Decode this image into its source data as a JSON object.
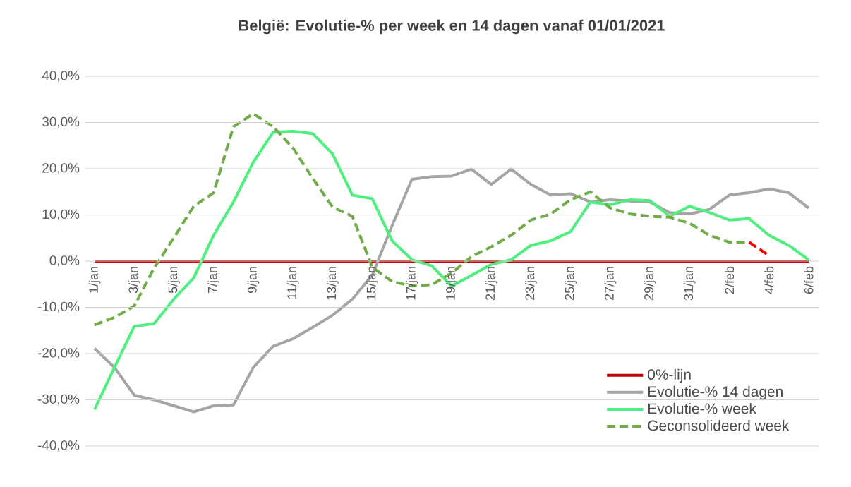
{
  "chart_data": {
    "type": "line",
    "title": "België:  Evolutie-% per week en 14 dagen vanaf 01/01/2021",
    "categories": [
      "1/jan",
      null,
      "3/jan",
      null,
      "5/jan",
      null,
      "7/jan",
      null,
      "9/jan",
      null,
      "11/jan",
      null,
      "13/jan",
      null,
      "15/jan",
      null,
      "17/jan",
      null,
      "19/jan",
      null,
      "21/jan",
      null,
      "23/jan",
      null,
      "25/jan",
      null,
      "27/jan",
      null,
      "29/jan",
      null,
      "31/jan",
      null,
      "2/feb",
      null,
      "4/feb",
      null,
      "6/feb"
    ],
    "ylim": [
      -40,
      40
    ],
    "yticks": [
      {
        "value": -40,
        "label": "-40,0%"
      },
      {
        "value": -30,
        "label": "-30,0%"
      },
      {
        "value": -20,
        "label": "-20,0%"
      },
      {
        "value": -10,
        "label": "-10,0%"
      },
      {
        "value": 0,
        "label": "0,0%"
      },
      {
        "value": 10,
        "label": "10,0%"
      },
      {
        "value": 20,
        "label": "20,0%"
      },
      {
        "value": 30,
        "label": "30,0%"
      },
      {
        "value": 40,
        "label": "40,0%"
      }
    ],
    "grid": "y",
    "legend": "bottom right",
    "marker": "none",
    "series": [
      {
        "name": "0%-lijn",
        "color": "#c00000",
        "line_style": "solid",
        "values": [
          0,
          0,
          0,
          0,
          0,
          0,
          0,
          0,
          0,
          0,
          0,
          0,
          0,
          0,
          0,
          0,
          0,
          0,
          0,
          0,
          0,
          0,
          0,
          0,
          0,
          0,
          0,
          0,
          0,
          0,
          0,
          0,
          0,
          0,
          0,
          0,
          0
        ]
      },
      {
        "name": "Evolutie-% 14 dagen",
        "color": "#a5a5a5",
        "line_style": "solid",
        "values": [
          -18.9,
          -23,
          -29,
          -30,
          -31.3,
          -32.6,
          -31.3,
          -31.1,
          -23,
          -18.4,
          -16.8,
          -14.3,
          -11.7,
          -8.2,
          -3,
          7.7,
          17.7,
          18.3,
          18.4,
          19.9,
          16.6,
          19.9,
          16.6,
          14.3,
          14.6,
          12.8,
          13.3,
          13,
          12.8,
          10.5,
          10.2,
          11.2,
          14.3,
          14.8,
          15.6,
          14.8,
          11.5
        ]
      },
      {
        "name": "Evolutie-% week",
        "color": "#4df07e",
        "line_style": "solid",
        "values": [
          -32.1,
          -23,
          -14.1,
          -13.5,
          -8.2,
          -3.6,
          5.6,
          12.8,
          21.4,
          27.9,
          28.1,
          27.6,
          23.2,
          14.3,
          13.5,
          4.4,
          0.3,
          -1,
          -5.4,
          -3.1,
          -0.7,
          0.3,
          3.4,
          4.4,
          6.4,
          12.8,
          12.2,
          13.3,
          13.1,
          9.7,
          11.9,
          10.5,
          8.9,
          9.2,
          5.6,
          3.4,
          0.3
        ]
      },
      {
        "name": "Geconsolideerd week",
        "color": "#70ad47",
        "line_style": "dashed",
        "values": [
          -13.8,
          -12.2,
          -9.7,
          -1.5,
          5.1,
          11.9,
          14.8,
          29.1,
          31.9,
          29.1,
          24.5,
          17.9,
          11.7,
          9.7,
          -1.3,
          -4.4,
          -5.4,
          -5.1,
          -2.6,
          1,
          3.1,
          5.6,
          8.9,
          10.2,
          13.3,
          15,
          11.5,
          10.2,
          9.7,
          9.5,
          8.2,
          5.6,
          4.1,
          4.1,
          null,
          null,
          null
        ]
      },
      {
        "color": "#ff0000",
        "line_style": "dashed",
        "values": [
          null,
          null,
          null,
          null,
          null,
          null,
          null,
          null,
          null,
          null,
          null,
          null,
          null,
          null,
          null,
          null,
          null,
          null,
          null,
          null,
          null,
          null,
          null,
          null,
          null,
          null,
          null,
          null,
          null,
          null,
          null,
          null,
          null,
          4.1,
          1.2,
          null,
          null
        ]
      }
    ]
  }
}
